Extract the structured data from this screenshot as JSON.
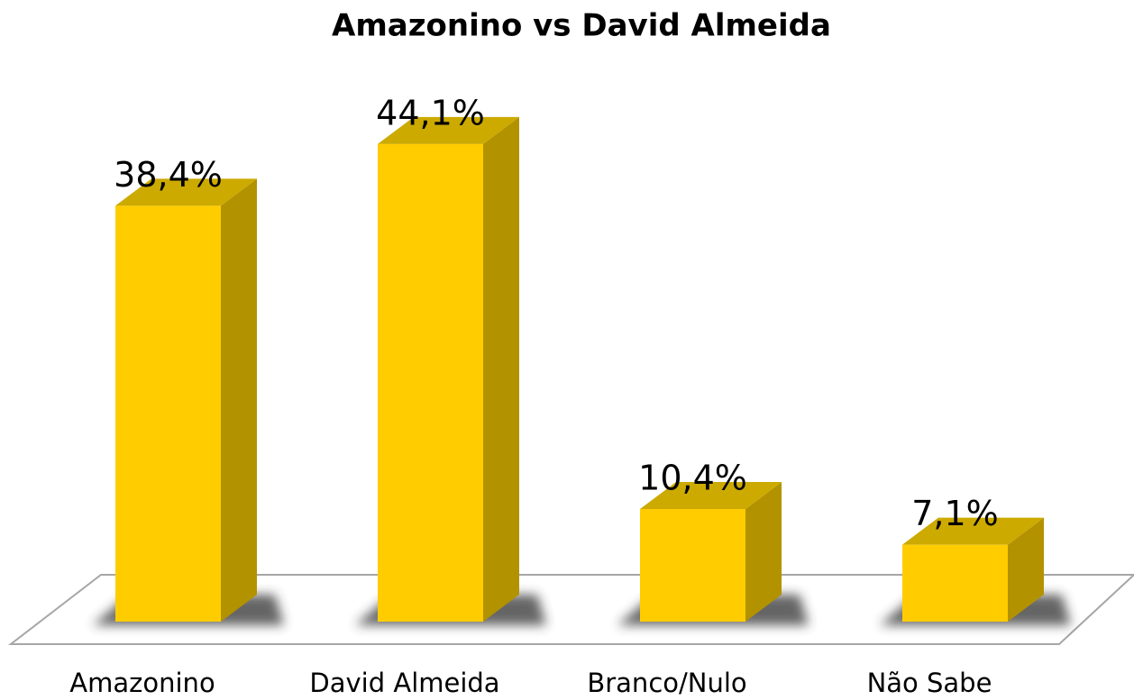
{
  "chart_data": {
    "type": "bar3d",
    "title": "Amazonino vs David Almeida",
    "categories": [
      "Amazonino",
      "David Almeida",
      "Branco/Nulo",
      "Não Sabe"
    ],
    "values": [
      38.4,
      44.1,
      10.4,
      7.1
    ],
    "value_labels": [
      "38,4%",
      "44,1%",
      "10,4%",
      "7,1%"
    ],
    "color": "#ffcc00"
  }
}
